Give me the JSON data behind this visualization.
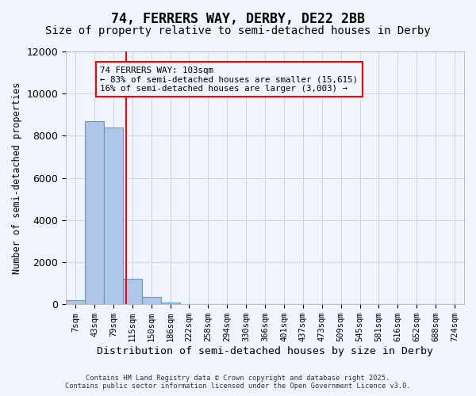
{
  "title": "74, FERRERS WAY, DERBY, DE22 2BB",
  "subtitle": "Size of property relative to semi-detached houses in Derby",
  "xlabel": "Distribution of semi-detached houses by size in Derby",
  "ylabel": "Number of semi-detached properties",
  "bin_labels": [
    "7sqm",
    "43sqm",
    "79sqm",
    "115sqm",
    "150sqm",
    "186sqm",
    "222sqm",
    "258sqm",
    "294sqm",
    "330sqm",
    "366sqm",
    "401sqm",
    "437sqm",
    "473sqm",
    "509sqm",
    "545sqm",
    "581sqm",
    "616sqm",
    "652sqm",
    "688sqm",
    "724sqm"
  ],
  "bar_values": [
    200,
    8700,
    8400,
    1200,
    350,
    100,
    0,
    0,
    0,
    0,
    0,
    0,
    0,
    0,
    0,
    0,
    0,
    0,
    0,
    0,
    0
  ],
  "bar_color": "#aec6e8",
  "bar_edge_color": "#5a9fd4",
  "grid_color": "#d0d8e8",
  "background_color": "#f0f4fc",
  "red_line_x": 2.67,
  "ylim": [
    0,
    12000
  ],
  "annotation_text": "74 FERRERS WAY: 103sqm\n← 83% of semi-detached houses are smaller (15,615)\n16% of semi-detached houses are larger (3,003) →",
  "footer_line1": "Contains HM Land Registry data © Crown copyright and database right 2025.",
  "footer_line2": "Contains public sector information licensed under the Open Government Licence v3.0.",
  "title_fontsize": 12,
  "subtitle_fontsize": 10,
  "tick_fontsize": 7.5,
  "ylabel_fontsize": 8.5,
  "xlabel_fontsize": 9.5
}
